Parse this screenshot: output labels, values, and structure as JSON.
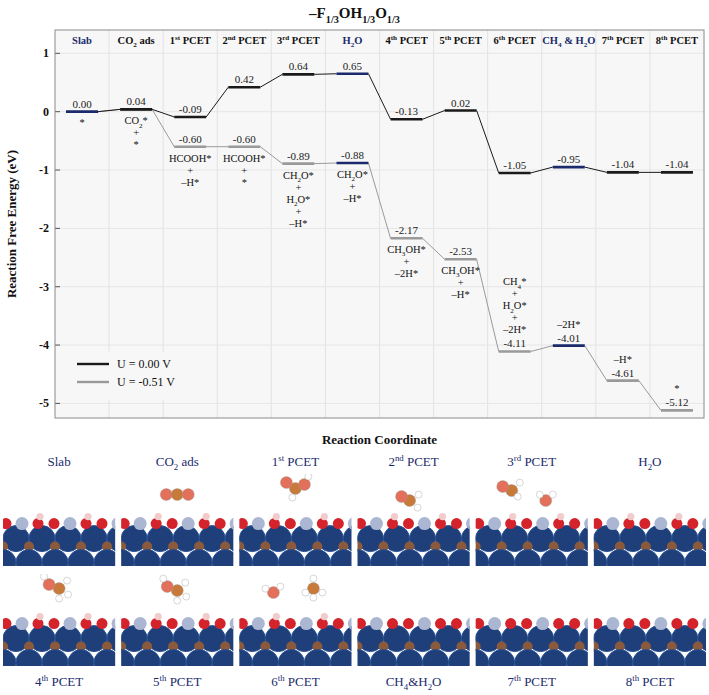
{
  "chart_data": {
    "type": "line",
    "title": "–F1/3OH1/3O1/3",
    "x_label": "Reaction Coordinate",
    "y_label": "Reaction Free Energy (eV)",
    "categories": [
      "Slab",
      "CO2 ads",
      "1st PCET",
      "2nd PCET",
      "3rd PCET",
      "H2O",
      "4th PCET",
      "5th PCET",
      "6th PCET",
      "CH4 & H2O",
      "7th PCET",
      "8th PCET"
    ],
    "series": [
      {
        "name": "U = 0.00 V",
        "color": "#1a1a1a",
        "colors": [
          "#1a2a6c",
          "#1a1a1a",
          "#1a1a1a",
          "#1a1a1a",
          "#1a1a1a",
          "#1a2a6c",
          "#1a1a1a",
          "#1a1a1a",
          "#1a1a1a",
          "#1a2a6c",
          "#1a1a1a",
          "#1a1a1a"
        ],
        "values": [
          0.0,
          0.04,
          -0.09,
          0.42,
          0.64,
          0.65,
          -0.13,
          0.02,
          -1.05,
          -0.95,
          -1.04,
          -1.04
        ],
        "value_labels": [
          "0.00",
          "0.04",
          "-0.09",
          "0.42",
          "0.64",
          "0.65",
          "-0.13",
          "0.02",
          "-1.05",
          "-0.95",
          "-1.04",
          "-1.04"
        ]
      },
      {
        "name": "U = -0.51 V",
        "color": "#9a9a9a",
        "colors": [
          "#1a2a6c",
          "#9a9a9a",
          "#9a9a9a",
          "#9a9a9a",
          "#9a9a9a",
          "#1a2a6c",
          "#9a9a9a",
          "#9a9a9a",
          "#9a9a9a",
          "#1a2a6c",
          "#9a9a9a",
          "#9a9a9a"
        ],
        "values": [
          0.0,
          0.04,
          -0.6,
          -0.6,
          -0.89,
          -0.88,
          -2.17,
          -2.53,
          -4.11,
          -4.01,
          -4.61,
          -5.12
        ],
        "value_labels": [
          null,
          null,
          "-0.60",
          "-0.60",
          "-0.89",
          "-0.88",
          "-2.17",
          "-2.53",
          "-4.11",
          "-4.01",
          "-4.61",
          "-5.12"
        ]
      }
    ],
    "ylim": [
      -5.25,
      1.4
    ],
    "yticks": [
      -5,
      -4,
      -3,
      -2,
      -1,
      0,
      1
    ],
    "grid": true,
    "legend": "lower left",
    "data_labels": true,
    "annotations": [
      [
        "*"
      ],
      [
        "CO2*",
        "+",
        "*"
      ],
      [
        "HCOOH*",
        "+",
        "–H*"
      ],
      [
        "HCOOH*",
        "+",
        "*"
      ],
      [
        "CH2O*",
        "+",
        "H2O*",
        "+",
        "–H*"
      ],
      [
        "CH2O*",
        "+",
        "–H*"
      ],
      [
        "CH3OH*",
        "+",
        "–2H*"
      ],
      [
        "CH3OH*",
        "+",
        "–H*"
      ],
      [
        "CH4*",
        "+",
        "H2O*",
        "+",
        "–2H*"
      ],
      [
        "–2H*"
      ],
      [
        "–H*"
      ],
      [
        "*"
      ]
    ]
  },
  "structures": {
    "labels": [
      "Slab",
      "CO2 ads",
      "1st PCET",
      "2nd PCET",
      "3rd PCET",
      "H2O",
      "4th PCET",
      "5th PCET",
      "6th PCET",
      "CH4&H2O",
      "7th PCET",
      "8th PCET"
    ]
  }
}
